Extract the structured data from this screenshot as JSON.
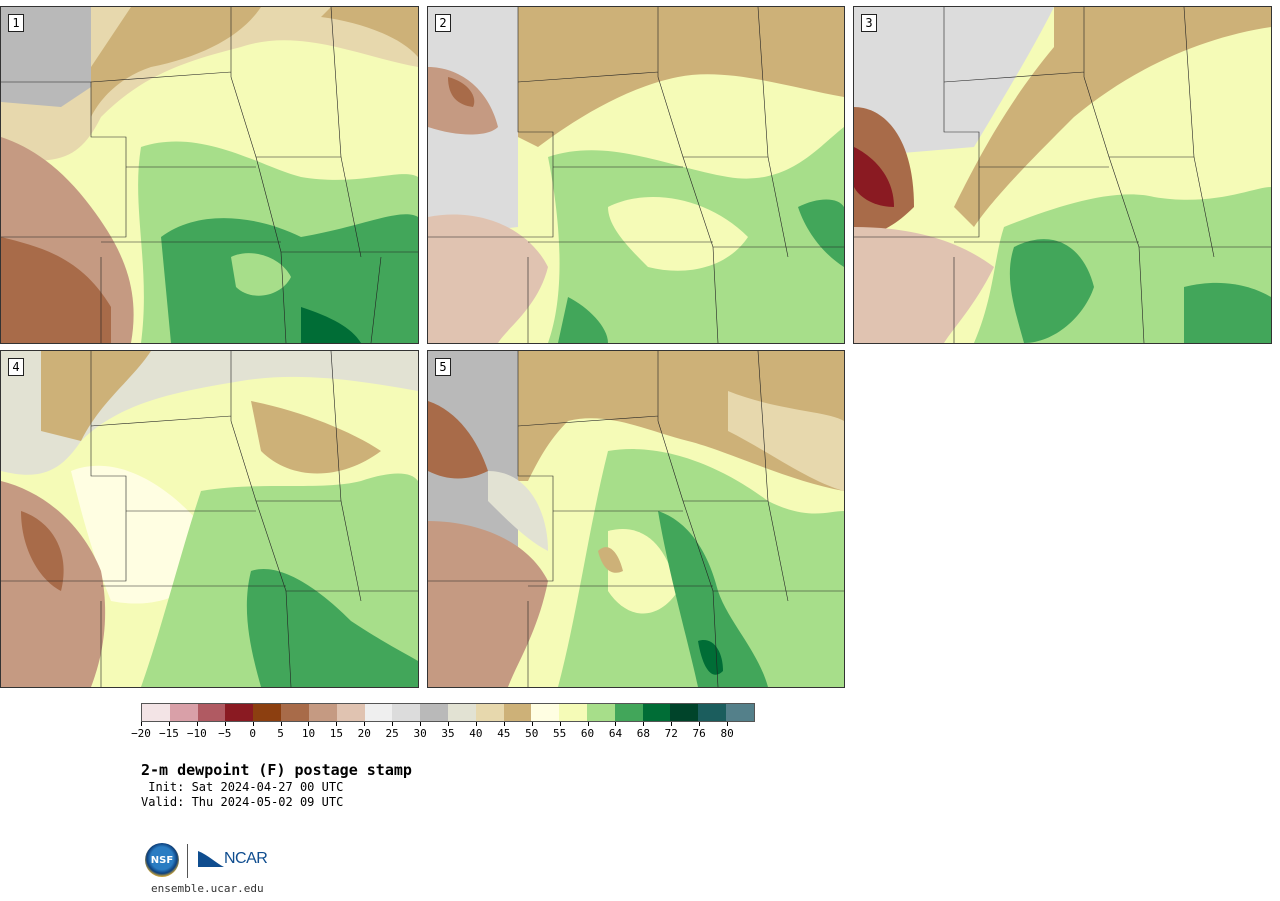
{
  "panels": [
    {
      "number": "1"
    },
    {
      "number": "2"
    },
    {
      "number": "3"
    },
    {
      "number": "4"
    },
    {
      "number": "5"
    }
  ],
  "colorbar": {
    "colors": [
      "#f3e4e6",
      "#d9a0a8",
      "#b05a62",
      "#8a1a22",
      "#8c3f10",
      "#a86b49",
      "#c59a82",
      "#e0c3b1",
      "#efefef",
      "#dcdcdc",
      "#b9b9b9",
      "#e2e2d3",
      "#e7d8ad",
      "#cdb178",
      "#fffee2",
      "#f5fbb7",
      "#a7de8a",
      "#42a65a",
      "#006d36",
      "#00442a",
      "#1b5d5d",
      "#54808a"
    ],
    "ticks": [
      "−20",
      "−15",
      "−10",
      "−5",
      "0",
      "5",
      "10",
      "15",
      "20",
      "25",
      "30",
      "35",
      "40",
      "45",
      "50",
      "55",
      "60",
      "64",
      "68",
      "72",
      "76",
      "80"
    ]
  },
  "title": "2-m dewpoint (F) postage stamp",
  "init": " Init: Sat 2024-04-27 00 UTC",
  "valid": "Valid: Thu 2024-05-02 09 UTC",
  "logo": {
    "nsf_text": "NSF",
    "ncar_text": "NCAR"
  },
  "url": "ensemble.ucar.edu"
}
